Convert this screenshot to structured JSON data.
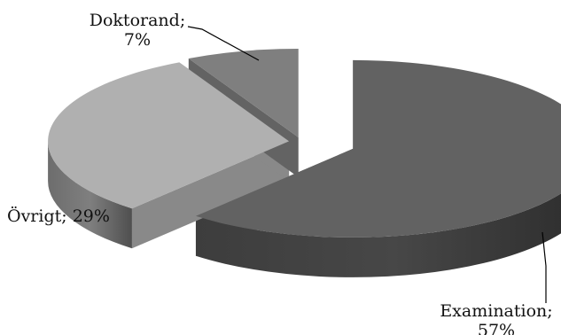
{
  "chart_data": {
    "type": "pie",
    "style": "3d-exploded",
    "title": "",
    "slices": [
      {
        "name": "Examination",
        "value": 57,
        "label_line1": "Examination;",
        "label_line2": "57%",
        "color": "#626262"
      },
      {
        "name": "Övrigt",
        "value": 29,
        "label_line1": "Övrigt; 29%",
        "label_line2": "",
        "color": "#b0b0b0"
      },
      {
        "name": "Doktorand",
        "value": 7,
        "label_line1": "Doktorand;",
        "label_line2": "7%",
        "color": "#7f7f7f"
      }
    ],
    "legend": "none",
    "labels": "outside-with-leader-lines"
  }
}
